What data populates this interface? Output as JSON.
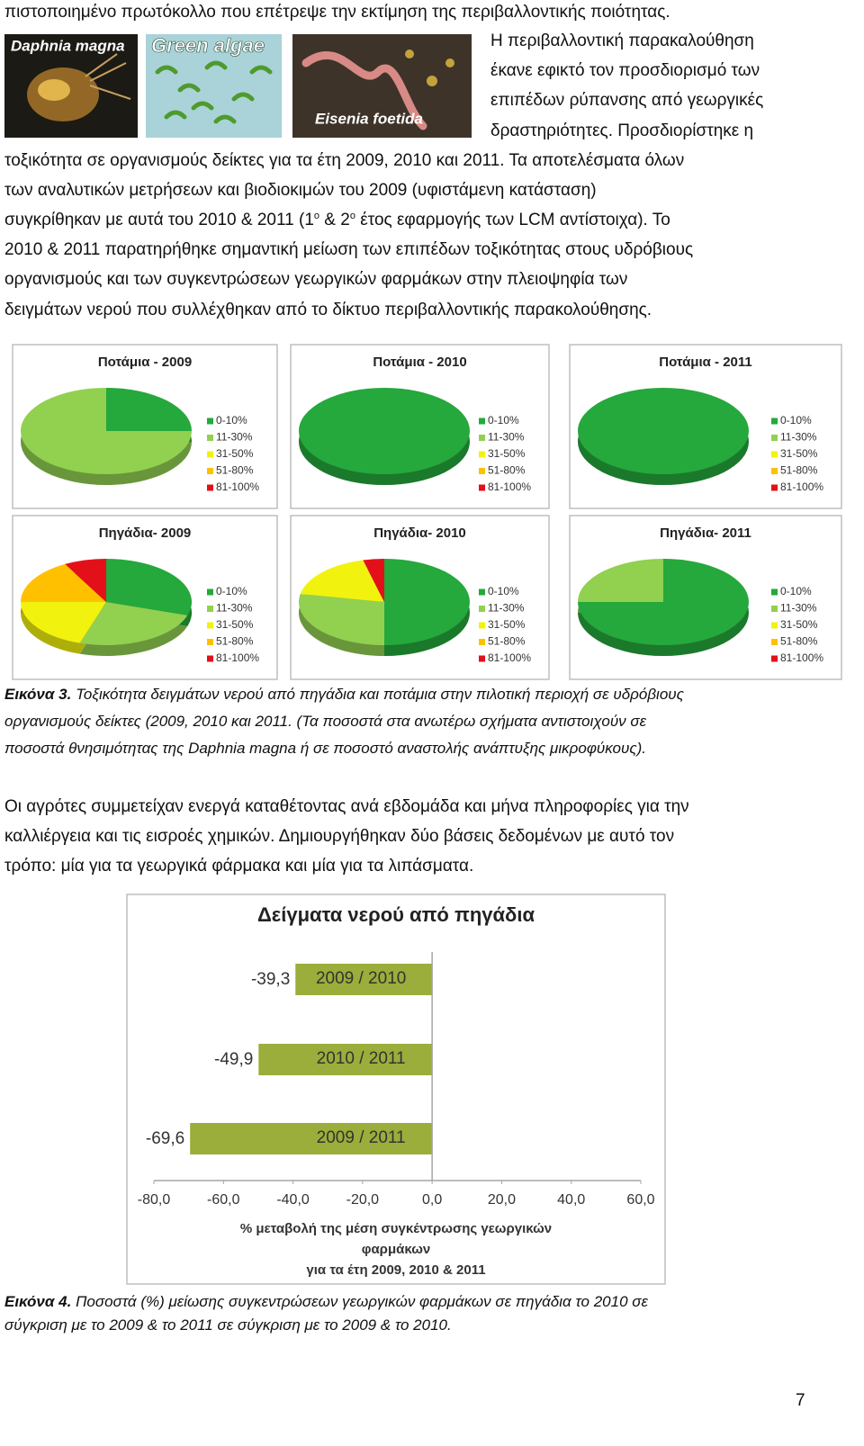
{
  "document": {
    "paragraph1": [
      "πιστοποιημένο πρωτόκολλο που επέτρεψε την εκτίμηση της περιβαλλοντικής ποιότητας.",
      "Η περιβαλλοντική παρακαλούθηση",
      "έκανε εφικτό τον προσδιορισμό  των",
      "επιπέδων ρύπανσης από γεωργικές",
      "δραστηριότητες. Προσδιορίστηκε η",
      "τοξικότητα σε οργανισμούς δείκτες για τα έτη 2009, 2010 και 2011. Τα αποτελέσματα όλων",
      "των αναλυτικών μετρήσεων και βιοδιοκιμών του 2009 (υφιστάμενη κατάσταση)",
      [
        "συγκρίθηκαν με αυτά του 2010 & 2011 (1",
        "ο",
        " & 2",
        "ο",
        " έτος εφαρμογής των LCM αντίστοιχα). Το"
      ],
      "2010 & 2011 παρατηρήθηκε σημαντική μείωση των επιπέδων τοξικότητας στους υδρόβιους",
      "οργανισμούς και των συγκεντρώσεων γεωργικών φαρμάκων στην πλειοψηφία των",
      "δειγμάτων νερού που συλλέχθηκαν από το δίκτυο περιβαλλοντικής παρακολούθησης."
    ],
    "images": [
      "Daphnia magna",
      "Green algae",
      "Eisenia foetida"
    ],
    "caption3": {
      "label": "Εικόνα 3.",
      "lines": [
        "Τοξικότητα δειγμάτων νερού από πηγάδια και ποτάμια στην πιλοτική περιοχή σε υδρόβιους",
        "οργανισμούς δείκτες (2009, 2010 και 2011. (Τα ποσοστά στα ανωτέρω σχήματα αντιστοιχούν σε",
        "ποσοστά θνησιμότητας της Daphnia magna ή σε ποσοστό αναστολής ανάπτυξης μικροφύκους)."
      ]
    },
    "paragraph2": [
      "Οι αγρότες συμμετείχαν ενεργά  καταθέτοντας ανά εβδομάδα και μήνα πληροφορίες για την",
      "καλλιέργεια και τις εισροές χημικών. Δημιουργήθηκαν δύο βάσεις δεδομένων  με αυτό τον",
      "τρόπο: μία για τα γεωργικά φάρμακα και μία για τα λιπάσματα."
    ],
    "caption4": {
      "label": "Εικόνα 4.",
      "lines": [
        "Ποσοστά (%) μείωσης συγκεντρώσεων γεωργικών φαρμάκων σε πηγάδια το 2010 σε",
        "σύγκριση με το 2009 & το 2011 σε σύγκριση με το 2009 & το 2010."
      ]
    },
    "page_number": "7"
  },
  "chart_data": [
    {
      "type": "pie",
      "title": "Ποτάμια - 2009",
      "categories": [
        "0-10%",
        "11-30%",
        "31-50%",
        "51-80%",
        "81-100%"
      ],
      "values": [
        25,
        75,
        0,
        0,
        0
      ],
      "colors": [
        "#25a83c",
        "#92d050",
        "#f2f20f",
        "#ffc000",
        "#e3101a"
      ]
    },
    {
      "type": "pie",
      "title": "Ποτάμια - 2010",
      "categories": [
        "0-10%",
        "11-30%",
        "31-50%",
        "51-80%",
        "81-100%"
      ],
      "values": [
        100,
        0,
        0,
        0,
        0
      ],
      "colors": [
        "#25a83c",
        "#92d050",
        "#f2f20f",
        "#ffc000",
        "#e3101a"
      ]
    },
    {
      "type": "pie",
      "title": "Ποτάμια - 2011",
      "categories": [
        "0-10%",
        "11-30%",
        "31-50%",
        "51-80%",
        "81-100%"
      ],
      "values": [
        100,
        0,
        0,
        0,
        0
      ],
      "colors": [
        "#25a83c",
        "#92d050",
        "#f2f20f",
        "#ffc000",
        "#e3101a"
      ]
    },
    {
      "type": "pie",
      "title": "Πηγάδια- 2009",
      "categories": [
        "0-10%",
        "11-30%",
        "31-50%",
        "51-80%",
        "81-100%"
      ],
      "values": [
        30,
        25,
        20,
        17,
        8
      ],
      "colors": [
        "#25a83c",
        "#92d050",
        "#f2f20f",
        "#ffc000",
        "#e3101a"
      ]
    },
    {
      "type": "pie",
      "title": "Πηγάδια- 2010",
      "categories": [
        "0-10%",
        "11-30%",
        "31-50%",
        "51-80%",
        "81-100%"
      ],
      "values": [
        50,
        28,
        18,
        0,
        4
      ],
      "colors": [
        "#25a83c",
        "#92d050",
        "#f2f20f",
        "#ffc000",
        "#e3101a"
      ]
    },
    {
      "type": "pie",
      "title": "Πηγάδια- 2011",
      "categories": [
        "0-10%",
        "11-30%",
        "31-50%",
        "51-80%",
        "81-100%"
      ],
      "values": [
        75,
        25,
        0,
        0,
        0
      ],
      "colors": [
        "#25a83c",
        "#92d050",
        "#f2f20f",
        "#ffc000",
        "#e3101a"
      ]
    },
    {
      "type": "bar",
      "orientation": "horizontal",
      "title": "Δείγματα νερού από πηγάδια",
      "categories": [
        "2009 / 2010",
        "2010 / 2011",
        "2009 / 2011"
      ],
      "values": [
        -39.3,
        -49.9,
        -69.6
      ],
      "value_labels": [
        "-39,3",
        "-49,9",
        "-69,6"
      ],
      "color": "#9bad3a",
      "xlim": [
        -80,
        60
      ],
      "xticks": [
        {
          "value": -80,
          "label": "-80,0"
        },
        {
          "value": -60,
          "label": "-60,0"
        },
        {
          "value": -40,
          "label": "-40,0"
        },
        {
          "value": -20,
          "label": "-20,0"
        },
        {
          "value": 0,
          "label": "0,0"
        },
        {
          "value": 20,
          "label": "20,0"
        },
        {
          "value": 40,
          "label": "40,0"
        },
        {
          "value": 60,
          "label": "60,0"
        }
      ],
      "xlabel": [
        "% μεταβολή της μέση συγκέντρωσης γεωργικών",
        "φαρμάκων",
        "για τα έτη 2009, 2010 & 2011"
      ]
    }
  ]
}
